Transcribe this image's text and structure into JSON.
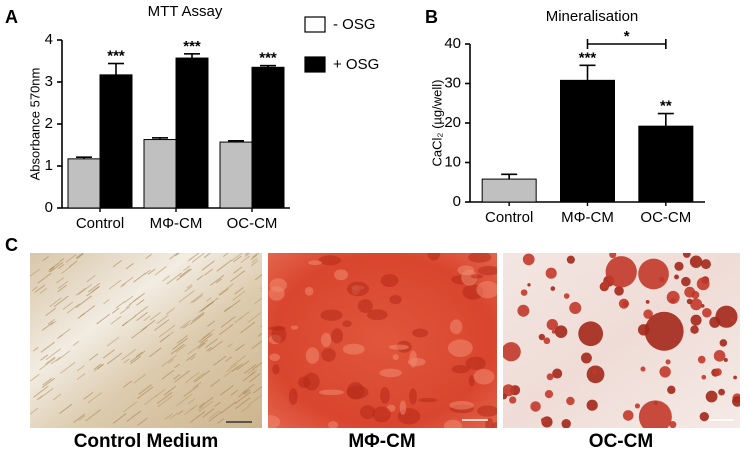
{
  "chart_data": [
    {
      "type": "grouped-bar",
      "panel_label": "A",
      "title": "MTT Assay",
      "y_label": "Absorbance 570nm",
      "categories": [
        "Control",
        "MΦ-CM",
        "OC-CM"
      ],
      "series": [
        {
          "name": "- OSG",
          "color": "#c0c0c0",
          "values": [
            1.17,
            1.63,
            1.57
          ],
          "errors": [
            0.04,
            0.04,
            0.03
          ]
        },
        {
          "name": "+ OSG",
          "color": "#000000",
          "values": [
            3.17,
            3.57,
            3.35
          ],
          "errors": [
            0.27,
            0.1,
            0.04
          ],
          "value_annotations": [
            "***",
            "***",
            "***"
          ]
        }
      ],
      "ylim": [
        0,
        4
      ],
      "yticks": [
        0,
        1,
        2,
        3,
        4
      ],
      "grid": false,
      "legend": "right"
    },
    {
      "type": "bar",
      "panel_label": "B",
      "title": "Mineralisation",
      "y_label": "CaCl₂ (µg/well)",
      "categories": [
        "Control",
        "MΦ-CM",
        "OC-CM"
      ],
      "values": [
        5.8,
        30.8,
        19.2
      ],
      "errors": [
        1.2,
        3.8,
        3.2
      ],
      "colors": [
        "#c0c0c0",
        "#000000",
        "#000000"
      ],
      "value_annotations": [
        null,
        "***",
        "**"
      ],
      "significance_bracket": "*",
      "ylim": [
        0,
        40
      ],
      "yticks": [
        0,
        10,
        20,
        30,
        40
      ],
      "grid": false
    }
  ],
  "figure_panel": {
    "label": "C",
    "captions": [
      "Control Medium",
      "MΦ-CM",
      "OC-CM"
    ]
  }
}
